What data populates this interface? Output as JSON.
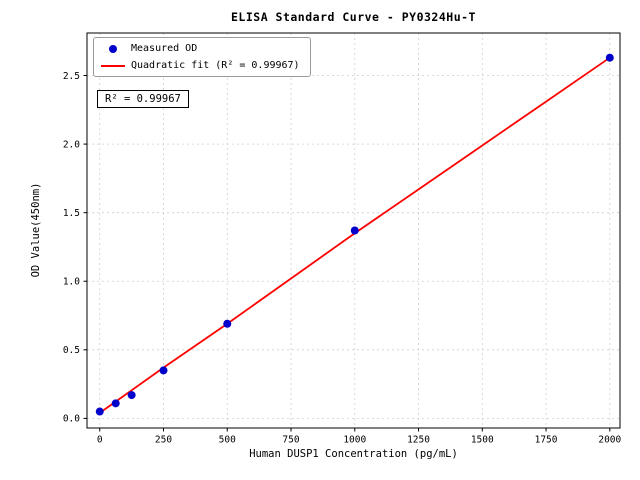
{
  "chart_data": {
    "type": "scatter",
    "title": "ELISA Standard Curve - PY0324Hu-T",
    "xlabel": "Human DUSP1 Concentration (pg/mL)",
    "ylabel": "OD Value(450nm)",
    "annotation": "R² = 0.99967",
    "grid": true,
    "legend_position": "upper-left",
    "xlim": [
      -50,
      2040
    ],
    "ylim": [
      -0.07,
      2.81
    ],
    "x_ticks": [
      0,
      250,
      500,
      750,
      1000,
      1250,
      1500,
      1750,
      2000
    ],
    "y_ticks": [
      0.0,
      0.5,
      1.0,
      1.5,
      2.0,
      2.5
    ],
    "colors": {
      "points": "#0000cd",
      "fit_line": "#ff0000",
      "grid": "#cfcfcf"
    },
    "series": [
      {
        "name": "Measured OD",
        "type": "scatter",
        "x": [
          0,
          62.5,
          125,
          250,
          500,
          1000,
          2000
        ],
        "y": [
          0.05,
          0.11,
          0.17,
          0.35,
          0.69,
          1.37,
          2.63
        ]
      },
      {
        "name": "Quadratic fit (R² = 0.99967)",
        "type": "line",
        "x": [
          0,
          250,
          500,
          750,
          1000,
          1250,
          1500,
          1750,
          2000
        ],
        "y": [
          0.04,
          0.37,
          0.69,
          1.02,
          1.35,
          1.67,
          1.99,
          2.31,
          2.63
        ]
      }
    ]
  }
}
